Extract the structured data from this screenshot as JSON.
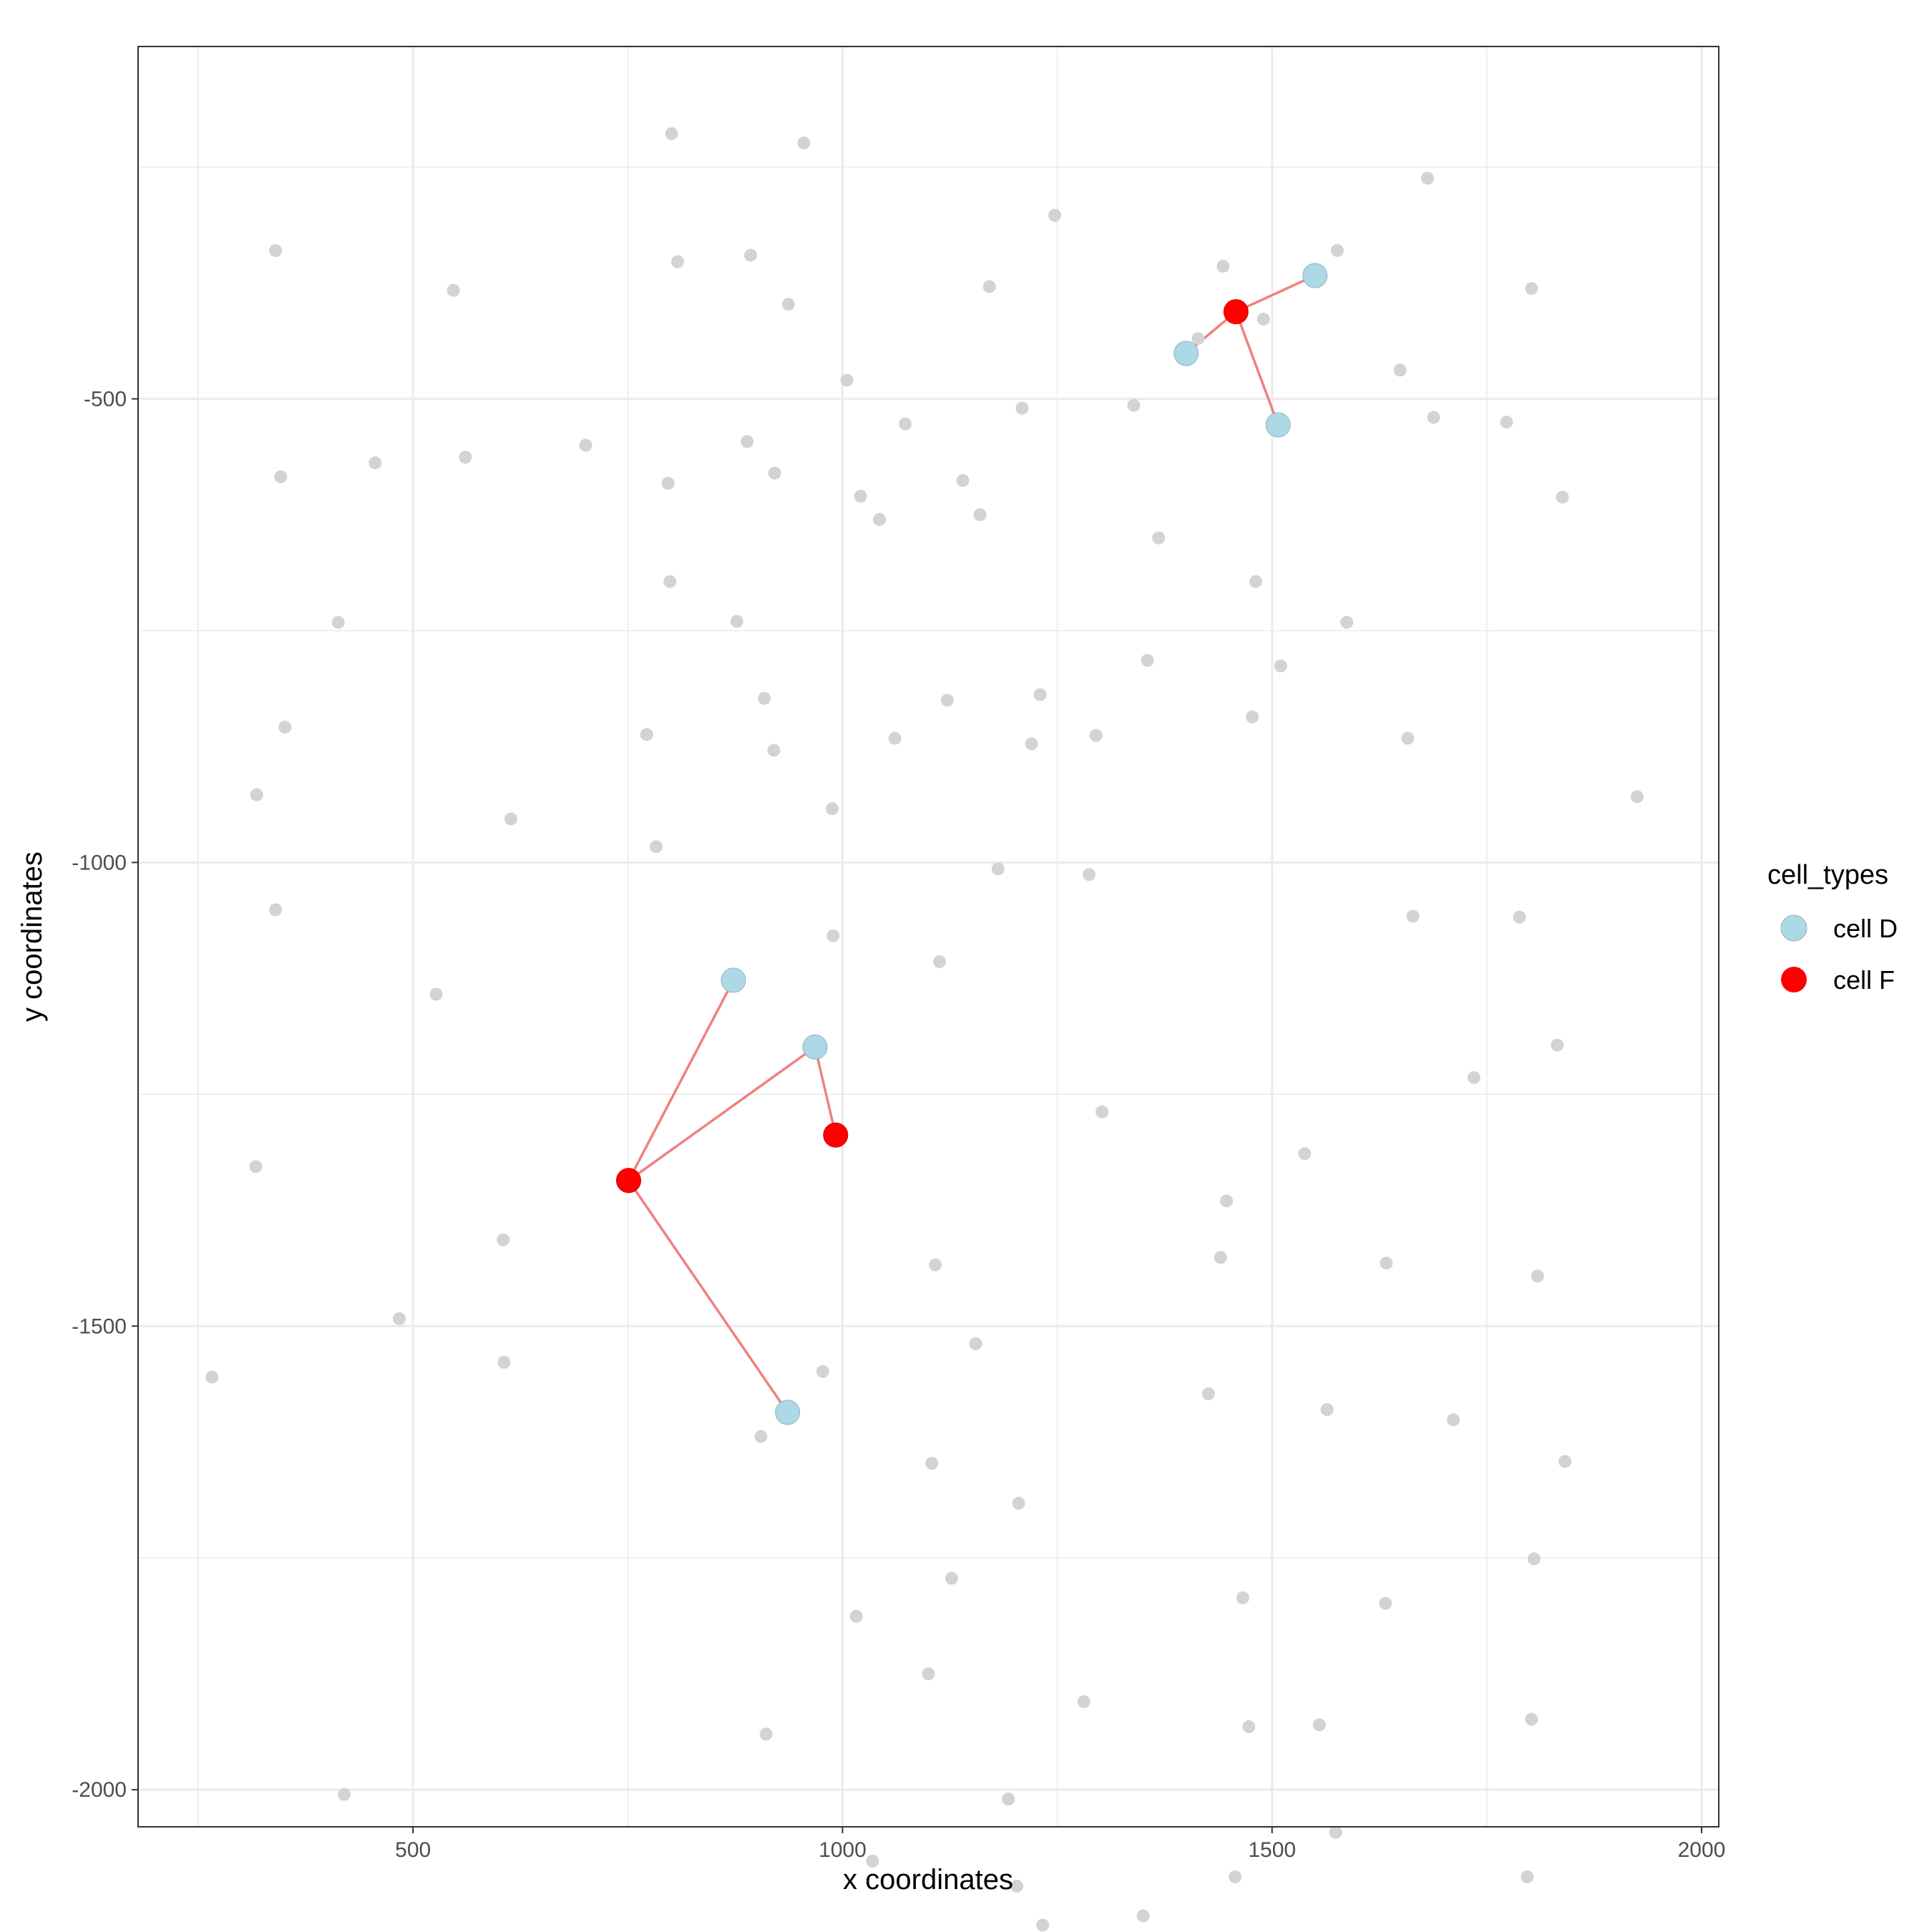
{
  "chart_data": {
    "type": "scatter",
    "title": "",
    "xlabel": "x coordinates",
    "ylabel": "y coordinates",
    "xlim": [
      180,
      2020
    ],
    "ylim": [
      -2040,
      -120
    ],
    "x_ticks": [
      500,
      1000,
      1500,
      2000
    ],
    "y_ticks": [
      -500,
      -1000,
      -1500,
      -2000
    ],
    "grid": true,
    "legend": {
      "title": "cell_types",
      "position": "right"
    },
    "colors": {
      "background_points": "#d3d3d3",
      "cell D": "#add8e6",
      "cell F": "#ff0000",
      "edge": "#f08080"
    },
    "series": [
      {
        "name": "cell D",
        "points": [
          [
            1550,
            -367
          ],
          [
            1400,
            -451
          ],
          [
            1507,
            -528
          ],
          [
            873,
            -1127
          ],
          [
            968,
            -1199
          ],
          [
            936,
            -1593
          ]
        ]
      },
      {
        "name": "cell F",
        "points": [
          [
            1458,
            -406
          ],
          [
            992,
            -1294
          ],
          [
            751,
            -1343
          ]
        ]
      }
    ],
    "edges": [
      [
        [
          1458,
          -406
        ],
        [
          1550,
          -367
        ]
      ],
      [
        [
          1458,
          -406
        ],
        [
          1400,
          -451
        ]
      ],
      [
        [
          1458,
          -406
        ],
        [
          1507,
          -528
        ]
      ],
      [
        [
          751,
          -1343
        ],
        [
          873,
          -1127
        ]
      ],
      [
        [
          751,
          -1343
        ],
        [
          968,
          -1199
        ]
      ],
      [
        [
          751,
          -1343
        ],
        [
          936,
          -1593
        ]
      ],
      [
        [
          992,
          -1294
        ],
        [
          968,
          -1199
        ]
      ]
    ],
    "background_points": [
      [
        801,
        -214
      ],
      [
        955,
        -224
      ],
      [
        1681,
        -262
      ],
      [
        1247,
        -302
      ],
      [
        340,
        -340
      ],
      [
        808,
        -352
      ],
      [
        893,
        -345
      ],
      [
        1576,
        -340
      ],
      [
        1443,
        -357
      ],
      [
        547,
        -383
      ],
      [
        1171,
        -379
      ],
      [
        937,
        -398
      ],
      [
        1802,
        -381
      ],
      [
        1490,
        -414
      ],
      [
        1414,
        -435
      ],
      [
        1649,
        -469
      ],
      [
        1005,
        -480
      ],
      [
        1209,
        -510
      ],
      [
        1339,
        -507
      ],
      [
        1073,
        -527
      ],
      [
        1773,
        -525
      ],
      [
        889,
        -546
      ],
      [
        701,
        -550
      ],
      [
        561,
        -563
      ],
      [
        456,
        -569
      ],
      [
        346,
        -584
      ],
      [
        797,
        -591
      ],
      [
        1140,
        -588
      ],
      [
        1021,
        -605
      ],
      [
        1838,
        -606
      ],
      [
        1688,
        -520
      ],
      [
        921,
        -580
      ],
      [
        1368,
        -650
      ],
      [
        1043,
        -630
      ],
      [
        1160,
        -625
      ],
      [
        1481,
        -697
      ],
      [
        799,
        -697
      ],
      [
        413,
        -741
      ],
      [
        877,
        -740
      ],
      [
        1587,
        -741
      ],
      [
        1355,
        -782
      ],
      [
        1510,
        -788
      ],
      [
        909,
        -823
      ],
      [
        1122,
        -825
      ],
      [
        1230,
        -819
      ],
      [
        351,
        -854
      ],
      [
        1295,
        -863
      ],
      [
        1477,
        -843
      ],
      [
        772,
        -862
      ],
      [
        1061,
        -866
      ],
      [
        1220,
        -872
      ],
      [
        1658,
        -866
      ],
      [
        920,
        -879
      ],
      [
        318,
        -927
      ],
      [
        1925,
        -929
      ],
      [
        988,
        -942
      ],
      [
        614,
        -953
      ],
      [
        783,
        -983
      ],
      [
        1181,
        -1007
      ],
      [
        1287,
        -1013
      ],
      [
        340,
        -1051
      ],
      [
        1664,
        -1058
      ],
      [
        1788,
        -1059
      ],
      [
        989,
        -1079
      ],
      [
        1113,
        -1107
      ],
      [
        527,
        -1142
      ],
      [
        1832,
        -1197
      ],
      [
        1735,
        -1232
      ],
      [
        1302,
        -1269
      ],
      [
        1538,
        -1314
      ],
      [
        317,
        -1328
      ],
      [
        1447,
        -1365
      ],
      [
        605,
        -1407
      ],
      [
        1440,
        -1426
      ],
      [
        1633,
        -1432
      ],
      [
        1108,
        -1434
      ],
      [
        1809,
        -1446
      ],
      [
        484,
        -1492
      ],
      [
        1155,
        -1519
      ],
      [
        977,
        -1549
      ],
      [
        266,
        -1555
      ],
      [
        606,
        -1539
      ],
      [
        1426,
        -1573
      ],
      [
        1564,
        -1590
      ],
      [
        905,
        -1619
      ],
      [
        1711,
        -1601
      ],
      [
        1104,
        -1648
      ],
      [
        1841,
        -1646
      ],
      [
        1205,
        -1691
      ],
      [
        1805,
        -1751
      ],
      [
        1127,
        -1772
      ],
      [
        1016,
        -1813
      ],
      [
        1466,
        -1793
      ],
      [
        1632,
        -1799
      ],
      [
        1100,
        -1875
      ],
      [
        1281,
        -1905
      ],
      [
        911,
        -1940
      ],
      [
        1473,
        -1932
      ],
      [
        1555,
        -1930
      ],
      [
        1802,
        -1924
      ],
      [
        420,
        -2005
      ],
      [
        1193,
        -2010
      ],
      [
        1574,
        -2046
      ],
      [
        1035,
        -2077
      ],
      [
        1457,
        -2094
      ],
      [
        1797,
        -2094
      ],
      [
        1203,
        -2104
      ],
      [
        1350,
        -2136
      ],
      [
        1233,
        -2146
      ]
    ]
  }
}
